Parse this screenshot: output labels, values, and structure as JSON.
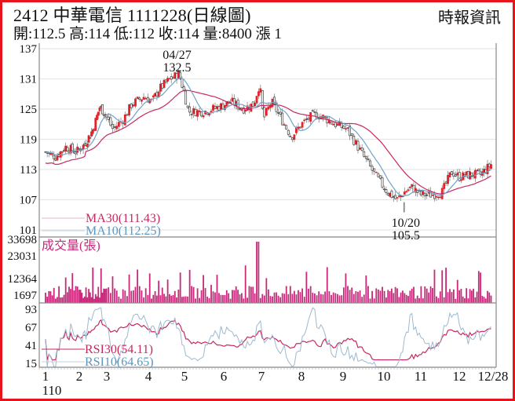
{
  "header": {
    "title": "2412  中華電信 1111228(日線圖)",
    "ohlc": "開:112.5 高:114 低:112 收:114 量:8400 漲 1",
    "source": "時報資訊"
  },
  "colors": {
    "frame": "#e8141c",
    "up": "#e0242c",
    "down": "#222222",
    "ma30": "#c8285e",
    "ma10": "#6fa3c8",
    "volume": "#c8287a",
    "rsi30": "#c8285e",
    "rsi10": "#9db9cf",
    "grid": "#e6e6e6",
    "axis": "#888888"
  },
  "chart_data": [
    {
      "type": "candlestick",
      "title": "2412 中華電信 日線圖",
      "ylim": [
        101,
        137
      ],
      "yticks": [
        137,
        131,
        125,
        119,
        113,
        107,
        101
      ],
      "xticks": [
        "1",
        "2",
        "3",
        "4",
        "5",
        "6",
        "7",
        "8",
        "9",
        "10",
        "11",
        "12",
        "12/28"
      ],
      "xsublabel": "110",
      "annotations": [
        {
          "label_date": "04/27",
          "label_value": "132.5",
          "type": "high"
        },
        {
          "label_date": "10/20",
          "label_value": "105.5",
          "type": "low"
        }
      ],
      "legend": [
        {
          "name": "MA30",
          "label": "MA30(111.43)",
          "value": 111.43
        },
        {
          "name": "MA10",
          "label": "MA10(112.25)",
          "value": 112.25
        }
      ],
      "key_closes": [
        {
          "month": 1.0,
          "close": 116.5
        },
        {
          "month": 1.3,
          "close": 115.5
        },
        {
          "month": 1.6,
          "close": 117.5
        },
        {
          "month": 1.9,
          "close": 116.5
        },
        {
          "month": 2.2,
          "close": 118.0
        },
        {
          "month": 2.5,
          "close": 121.0
        },
        {
          "month": 2.75,
          "close": 125.5
        },
        {
          "month": 2.95,
          "close": 124.0
        },
        {
          "month": 3.15,
          "close": 121.0
        },
        {
          "month": 3.4,
          "close": 123.0
        },
        {
          "month": 3.6,
          "close": 126.0
        },
        {
          "month": 3.9,
          "close": 127.5
        },
        {
          "month": 4.1,
          "close": 126.5
        },
        {
          "month": 4.3,
          "close": 129.0
        },
        {
          "month": 4.6,
          "close": 131.0
        },
        {
          "month": 4.85,
          "close": 132.0
        },
        {
          "month": 5.0,
          "close": 128.0
        },
        {
          "month": 5.1,
          "close": 124.5
        },
        {
          "month": 5.5,
          "close": 124.5
        },
        {
          "month": 5.9,
          "close": 125.5
        },
        {
          "month": 6.2,
          "close": 126.5
        },
        {
          "month": 6.5,
          "close": 125.0
        },
        {
          "month": 6.8,
          "close": 126.0
        },
        {
          "month": 6.95,
          "close": 130.0
        },
        {
          "month": 7.05,
          "close": 123.0
        },
        {
          "month": 7.25,
          "close": 126.5
        },
        {
          "month": 7.5,
          "close": 123.0
        },
        {
          "month": 7.75,
          "close": 119.5
        },
        {
          "month": 8.0,
          "close": 122.0
        },
        {
          "month": 8.3,
          "close": 124.0
        },
        {
          "month": 8.5,
          "close": 123.5
        },
        {
          "month": 8.8,
          "close": 122.0
        },
        {
          "month": 9.1,
          "close": 121.0
        },
        {
          "month": 9.4,
          "close": 117.0
        },
        {
          "month": 9.7,
          "close": 113.0
        },
        {
          "month": 9.95,
          "close": 110.0
        },
        {
          "month": 10.1,
          "close": 108.5
        },
        {
          "month": 10.35,
          "close": 107.0
        },
        {
          "month": 10.55,
          "close": 108.5
        },
        {
          "month": 10.75,
          "close": 109.5
        },
        {
          "month": 11.0,
          "close": 108.0
        },
        {
          "month": 11.3,
          "close": 108.0
        },
        {
          "month": 11.55,
          "close": 108.5
        },
        {
          "month": 11.8,
          "close": 112.5
        },
        {
          "month": 12.0,
          "close": 111.5
        },
        {
          "month": 12.3,
          "close": 112.0
        },
        {
          "month": 12.6,
          "close": 112.0
        },
        {
          "month": 12.9,
          "close": 114.0
        }
      ]
    },
    {
      "type": "bar",
      "title": "成交量(張)",
      "yticks": [
        33698,
        23031,
        12364,
        1697
      ],
      "ylim": [
        1697,
        33698
      ],
      "peak": {
        "month": 6.9,
        "value": 33698
      }
    },
    {
      "type": "line",
      "title": "RSI",
      "yticks": [
        93,
        67,
        41,
        15
      ],
      "ylim": [
        15,
        93
      ],
      "legend": [
        {
          "name": "RSI30",
          "label": "RSI30(54.11)",
          "value": 54.11
        },
        {
          "name": "RSI10",
          "label": "RSI10(64.65)",
          "value": 64.65
        }
      ]
    }
  ]
}
